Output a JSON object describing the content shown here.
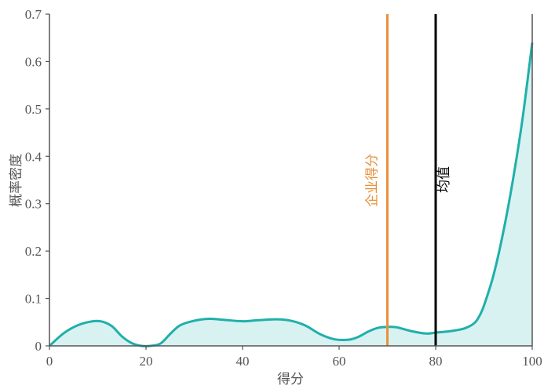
{
  "chart_data": {
    "type": "area",
    "title": "",
    "xlabel": "得分",
    "ylabel": "概率密度",
    "xlim": [
      0,
      100
    ],
    "ylim": [
      0,
      0.7
    ],
    "xticks": [
      0,
      20,
      40,
      60,
      80,
      100
    ],
    "xtick_labels": [
      "0",
      "20",
      "40",
      "60",
      "80",
      "100"
    ],
    "yticks": [
      0,
      0.1,
      0.2,
      0.3,
      0.4,
      0.5,
      0.6,
      0.7
    ],
    "ytick_labels": [
      "0",
      "0.1",
      "0.2",
      "0.3",
      "0.4",
      "0.5",
      "0.6",
      "0.7"
    ],
    "grid": false,
    "colors": {
      "curve": "#1fb0aa",
      "fill": "#d8f1f1",
      "enterprise": "#e8913a",
      "mean": "#000000",
      "axis": "#555555",
      "tick_text": "#555555"
    },
    "series": [
      {
        "x": [
          0,
          3,
          6,
          9,
          11,
          13,
          15,
          17,
          19,
          21,
          23,
          25,
          27,
          30,
          33,
          36,
          40,
          43,
          47,
          50,
          53,
          56,
          59,
          62,
          64,
          66,
          68,
          70,
          72,
          75,
          78,
          80,
          83,
          86,
          88,
          89,
          90,
          92,
          94,
          96,
          98,
          100
        ],
        "y": [
          0.0,
          0.027,
          0.044,
          0.052,
          0.051,
          0.041,
          0.02,
          0.006,
          0.0,
          0.0,
          0.005,
          0.025,
          0.043,
          0.053,
          0.057,
          0.055,
          0.052,
          0.054,
          0.056,
          0.053,
          0.043,
          0.025,
          0.014,
          0.013,
          0.019,
          0.03,
          0.038,
          0.04,
          0.039,
          0.031,
          0.026,
          0.028,
          0.031,
          0.037,
          0.048,
          0.062,
          0.085,
          0.15,
          0.24,
          0.35,
          0.48,
          0.64
        ]
      }
    ],
    "annotations": [
      {
        "x": 70,
        "label": "企业得分",
        "color": "#e8913a"
      },
      {
        "x": 80,
        "label": "均值",
        "color": "#000000"
      }
    ]
  }
}
